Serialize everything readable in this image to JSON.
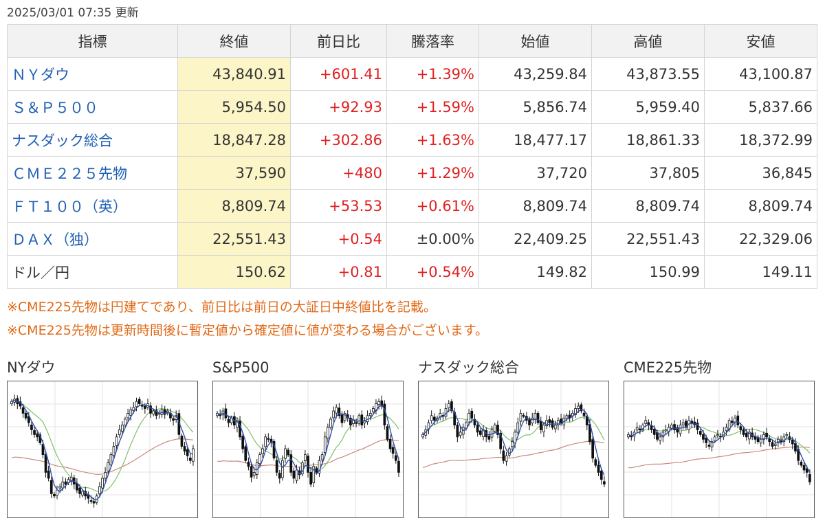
{
  "updated": "2025/03/01 07:35 更新",
  "table": {
    "headers": [
      "指標",
      "終値",
      "前日比",
      "騰落率",
      "始値",
      "高値",
      "安値"
    ],
    "rows": [
      {
        "name": "ＮＹダウ",
        "close": "43,840.91",
        "change": "+601.41",
        "rate": "+1.39%",
        "open": "43,259.84",
        "high": "43,873.55",
        "low": "43,100.87",
        "link": true
      },
      {
        "name": "Ｓ＆Ｐ５００",
        "close": "5,954.50",
        "change": "+92.93",
        "rate": "+1.59%",
        "open": "5,856.74",
        "high": "5,959.40",
        "low": "5,837.66",
        "link": true
      },
      {
        "name": "ナスダック総合",
        "close": "18,847.28",
        "change": "+302.86",
        "rate": "+1.63%",
        "open": "18,477.17",
        "high": "18,861.33",
        "low": "18,372.99",
        "link": true
      },
      {
        "name": "ＣＭＥ２２５先物",
        "close": "37,590",
        "change": "+480",
        "rate": "+1.29%",
        "open": "37,720",
        "high": "37,805",
        "low": "36,845",
        "link": true
      },
      {
        "name": "ＦＴ１００（英）",
        "close": "8,809.74",
        "change": "+53.53",
        "rate": "+0.61%",
        "open": "8,809.74",
        "high": "8,809.74",
        "low": "8,809.74",
        "link": true
      },
      {
        "name": "ＤＡＸ（独）",
        "close": "22,551.43",
        "change": "+0.54",
        "rate": "±0.00%",
        "open": "22,409.25",
        "high": "22,551.43",
        "low": "22,329.06",
        "link": true
      },
      {
        "name": "ドル／円",
        "close": "150.62",
        "change": "+0.81",
        "rate": "+0.54%",
        "open": "149.82",
        "high": "150.99",
        "low": "149.11",
        "link": false
      }
    ]
  },
  "notes": [
    "※CME225先物は円建てであり、前日比は前日の大証日中終値比を記載。",
    "※CME225先物は更新時間後に暫定値から確定値に値が変わる場合がございます。"
  ],
  "colors": {
    "link": "#1f5fb4",
    "up": "#e02020",
    "note": "#e06a18",
    "close_bg": "#fbf5c8",
    "ma_short": "#2f4fa8",
    "ma_mid": "#7fbf6a",
    "ma_long": "#c98a7e"
  },
  "charts": [
    {
      "title": "NYダウ",
      "closes": [
        0.9,
        0.92,
        0.88,
        0.86,
        0.8,
        0.76,
        0.72,
        0.66,
        0.62,
        0.6,
        0.55,
        0.45,
        0.3,
        0.25,
        0.12,
        0.1,
        0.15,
        0.18,
        0.22,
        0.2,
        0.24,
        0.26,
        0.2,
        0.15,
        0.12,
        0.14,
        0.1,
        0.08,
        0.06,
        0.04,
        0.1,
        0.18,
        0.25,
        0.3,
        0.38,
        0.45,
        0.52,
        0.6,
        0.66,
        0.7,
        0.75,
        0.8,
        0.83,
        0.85,
        0.9,
        0.88,
        0.86,
        0.84,
        0.88,
        0.8,
        0.82,
        0.78,
        0.8,
        0.83,
        0.79,
        0.82,
        0.76,
        0.74,
        0.78,
        0.62,
        0.52,
        0.48,
        0.44,
        0.4,
        0.5
      ]
    },
    {
      "title": "S&P500",
      "closes": [
        0.8,
        0.78,
        0.82,
        0.76,
        0.72,
        0.76,
        0.7,
        0.74,
        0.6,
        0.5,
        0.4,
        0.35,
        0.26,
        0.3,
        0.38,
        0.45,
        0.5,
        0.6,
        0.58,
        0.55,
        0.42,
        0.3,
        0.25,
        0.4,
        0.5,
        0.45,
        0.3,
        0.25,
        0.32,
        0.28,
        0.38,
        0.45,
        0.3,
        0.2,
        0.35,
        0.3,
        0.4,
        0.45,
        0.6,
        0.68,
        0.75,
        0.82,
        0.85,
        0.78,
        0.72,
        0.8,
        0.76,
        0.7,
        0.74,
        0.72,
        0.78,
        0.7,
        0.74,
        0.78,
        0.8,
        0.84,
        0.88,
        0.9,
        0.86,
        0.7,
        0.58,
        0.5,
        0.46,
        0.4,
        0.3
      ]
    },
    {
      "title": "ナスダック総合",
      "closes": [
        0.62,
        0.66,
        0.72,
        0.78,
        0.74,
        0.76,
        0.8,
        0.78,
        0.84,
        0.88,
        0.82,
        0.7,
        0.6,
        0.64,
        0.68,
        0.72,
        0.8,
        0.76,
        0.7,
        0.64,
        0.62,
        0.66,
        0.6,
        0.58,
        0.66,
        0.7,
        0.62,
        0.5,
        0.4,
        0.44,
        0.5,
        0.56,
        0.64,
        0.72,
        0.8,
        0.78,
        0.74,
        0.7,
        0.76,
        0.8,
        0.72,
        0.66,
        0.7,
        0.74,
        0.72,
        0.68,
        0.7,
        0.74,
        0.72,
        0.76,
        0.78,
        0.76,
        0.8,
        0.84,
        0.86,
        0.82,
        0.78,
        0.7,
        0.56,
        0.42,
        0.36,
        0.3,
        0.24,
        0.2
      ]
    },
    {
      "title": "CME225先物",
      "closes": [
        0.62,
        0.6,
        0.64,
        0.68,
        0.66,
        0.7,
        0.74,
        0.7,
        0.66,
        0.62,
        0.58,
        0.6,
        0.64,
        0.66,
        0.68,
        0.7,
        0.66,
        0.64,
        0.7,
        0.72,
        0.68,
        0.74,
        0.72,
        0.7,
        0.66,
        0.62,
        0.58,
        0.55,
        0.52,
        0.56,
        0.6,
        0.62,
        0.6,
        0.64,
        0.68,
        0.74,
        0.72,
        0.76,
        0.7,
        0.66,
        0.62,
        0.6,
        0.64,
        0.6,
        0.58,
        0.56,
        0.58,
        0.62,
        0.6,
        0.56,
        0.52,
        0.54,
        0.58,
        0.56,
        0.6,
        0.62,
        0.58,
        0.54,
        0.48,
        0.4,
        0.36,
        0.32,
        0.3,
        0.22
      ]
    }
  ]
}
